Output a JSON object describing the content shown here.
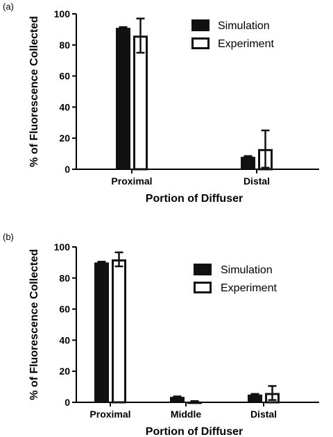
{
  "chart_data": [
    {
      "type": "bar",
      "panel_label": "(a)",
      "categories": [
        "Proximal",
        "Distal"
      ],
      "series": [
        {
          "name": "Simulation",
          "values": [
            91,
            8
          ],
          "errors": [
            0.5,
            0.5
          ],
          "color": "#111111"
        },
        {
          "name": "Experiment",
          "values": [
            86,
            13
          ],
          "errors": [
            11,
            12
          ],
          "color": "#ffffff"
        }
      ],
      "xlabel": "Portion of Diffuser",
      "ylabel": "% of Fluorescence Collected",
      "ylim": [
        0,
        100
      ],
      "yticks": [
        "0",
        "20",
        "40",
        "60",
        "80",
        "100"
      ],
      "legend_position": "top-right",
      "grid": false
    },
    {
      "type": "bar",
      "panel_label": "(b)",
      "categories": [
        "Proximal",
        "Middle",
        "Distal"
      ],
      "series": [
        {
          "name": "Simulation",
          "values": [
            90,
            3.5,
            5
          ],
          "errors": [
            0.5,
            0.3,
            0.4
          ],
          "color": "#111111"
        },
        {
          "name": "Experiment",
          "values": [
            92,
            0.5,
            6
          ],
          "errors": [
            4.5,
            0.3,
            4.5
          ],
          "color": "#ffffff"
        }
      ],
      "xlabel": "Portion of Diffuser",
      "ylabel": "% of Fluorescence Collected",
      "ylim": [
        0,
        100
      ],
      "yticks": [
        "0",
        "20",
        "40",
        "60",
        "80",
        "100"
      ],
      "legend_position": "top-right",
      "grid": false
    }
  ]
}
